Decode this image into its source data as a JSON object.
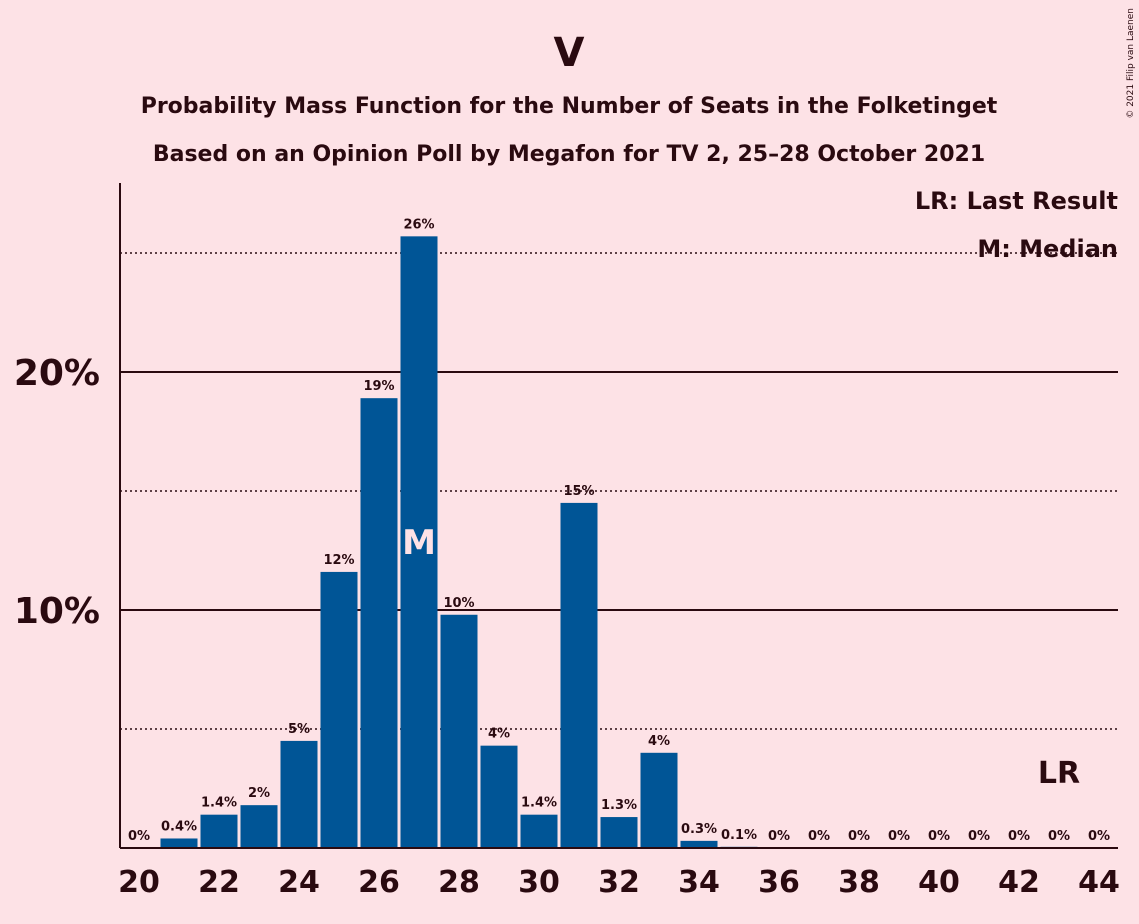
{
  "header": {
    "title": "V",
    "subtitle1": "Probability Mass Function for the Number of Seats in the Folketinget",
    "subtitle2": "Based on an Opinion Poll by Megafon for TV 2, 25–28 October 2021",
    "copyright": "© 2021 Filip van Laenen"
  },
  "legend": {
    "last_result": "LR: Last Result",
    "median": "M: Median"
  },
  "colors": {
    "background": "#fde2e6",
    "bar": "#005596",
    "text": "#2a0a10"
  },
  "chart_data": {
    "type": "bar",
    "title": "V",
    "xlabel": "",
    "ylabel": "",
    "x": [
      20,
      21,
      22,
      23,
      24,
      25,
      26,
      27,
      28,
      29,
      30,
      31,
      32,
      33,
      34,
      35,
      36,
      37,
      38,
      39,
      40,
      41,
      42,
      43,
      44
    ],
    "values": [
      0,
      0.4,
      1.4,
      1.8,
      4.5,
      11.6,
      18.9,
      25.7,
      9.8,
      4.3,
      1.4,
      14.5,
      1.3,
      4.0,
      0.3,
      0.05,
      0,
      0,
      0,
      0,
      0,
      0,
      0,
      0,
      0
    ],
    "data_labels": [
      "0%",
      "0.4%",
      "1.4%",
      "2%",
      "5%",
      "12%",
      "19%",
      "26%",
      "10%",
      "4%",
      "1.4%",
      "15%",
      "1.3%",
      "4%",
      "0.3%",
      "0.1%",
      "0%",
      "0%",
      "0%",
      "0%",
      "0%",
      "0%",
      "0%",
      "0%",
      "0%"
    ],
    "x_ticks": [
      "20",
      "22",
      "24",
      "26",
      "28",
      "30",
      "32",
      "34",
      "36",
      "38",
      "40",
      "42",
      "44"
    ],
    "y_ticks": [
      {
        "value": 10,
        "label": "10%"
      },
      {
        "value": 20,
        "label": "20%"
      }
    ],
    "y_minor_gridlines": [
      5,
      15,
      25
    ],
    "ylim": [
      0,
      28
    ],
    "median": {
      "x": 27,
      "label": "M"
    },
    "last_result": {
      "x": 43,
      "label": "LR"
    }
  }
}
